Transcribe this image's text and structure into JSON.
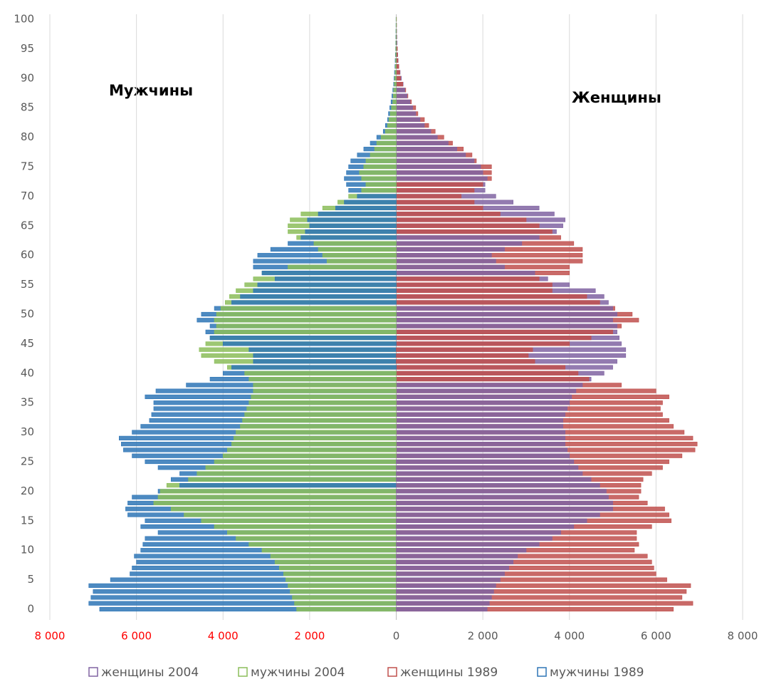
{
  "chart_data": {
    "type": "bar",
    "orientation": "horizontal",
    "annotations": [
      "Мужчины",
      "Женщины"
    ],
    "categories": [
      0,
      null,
      null,
      null,
      null,
      5,
      null,
      null,
      null,
      null,
      10,
      null,
      null,
      null,
      null,
      15,
      null,
      null,
      null,
      null,
      20,
      null,
      null,
      null,
      null,
      25,
      null,
      null,
      null,
      null,
      30,
      null,
      null,
      null,
      null,
      35,
      null,
      null,
      null,
      null,
      40,
      null,
      null,
      null,
      null,
      45,
      null,
      null,
      null,
      null,
      50,
      null,
      null,
      null,
      null,
      55,
      null,
      null,
      null,
      null,
      60,
      null,
      null,
      null,
      null,
      65,
      null,
      null,
      null,
      null,
      70,
      null,
      null,
      null,
      null,
      75,
      null,
      null,
      null,
      null,
      80,
      null,
      null,
      null,
      null,
      85,
      null,
      null,
      null,
      null,
      90,
      null,
      null,
      null,
      null,
      95,
      null,
      null,
      null,
      null,
      100
    ],
    "series": [
      {
        "name": "женщины 2004",
        "color": "#8064a2",
        "values": [
          2100,
          2150,
          2200,
          2250,
          2300,
          2400,
          2500,
          2600,
          2700,
          2800,
          3000,
          3300,
          3600,
          3800,
          4100,
          4400,
          4700,
          5000,
          5000,
          4900,
          4850,
          4700,
          4500,
          4300,
          4200,
          4100,
          4000,
          3950,
          3900,
          3900,
          3900,
          3850,
          3850,
          3900,
          3950,
          4000,
          4050,
          4150,
          4300,
          4500,
          4800,
          5000,
          5100,
          5300,
          5300,
          5200,
          5150,
          5100,
          5100,
          5000,
          5100,
          5000,
          4900,
          4800,
          4600,
          4000,
          3500,
          3200,
          2500,
          2300,
          2200,
          2500,
          2900,
          3300,
          3700,
          3850,
          3900,
          3650,
          3300,
          2700,
          2300,
          2050,
          2050,
          2100,
          2000,
          1950,
          1800,
          1600,
          1400,
          1200,
          950,
          800,
          650,
          550,
          450,
          380,
          320,
          250,
          200,
          160,
          120,
          90,
          60,
          45,
          35,
          25,
          18,
          12,
          9,
          6,
          4
        ]
      },
      {
        "name": "мужчины 2004",
        "color": "#8cbd5a",
        "values": [
          -2300,
          -2350,
          -2400,
          -2450,
          -2500,
          -2550,
          -2600,
          -2700,
          -2800,
          -2900,
          -3100,
          -3400,
          -3700,
          -3900,
          -4200,
          -4500,
          -4900,
          -5200,
          -5600,
          -5500,
          -5450,
          -5300,
          -4800,
          -4600,
          -4400,
          -4200,
          -4000,
          -3900,
          -3800,
          -3750,
          -3700,
          -3600,
          -3550,
          -3500,
          -3450,
          -3400,
          -3350,
          -3300,
          -3300,
          -3400,
          -3500,
          -3900,
          -4200,
          -4500,
          -4550,
          -4400,
          -4300,
          -4200,
          -4150,
          -4200,
          -4150,
          -4050,
          -3950,
          -3850,
          -3700,
          -3500,
          -3300,
          -3100,
          -2500,
          -1600,
          -1700,
          -1800,
          -1900,
          -2300,
          -2500,
          -2500,
          -2450,
          -2200,
          -1700,
          -1350,
          -1100,
          -800,
          -700,
          -800,
          -850,
          -750,
          -700,
          -600,
          -500,
          -450,
          -350,
          -250,
          -200,
          -170,
          -140,
          -110,
          -80,
          -70,
          -60,
          -45,
          -35,
          -25,
          -20,
          -15,
          -12,
          -10,
          -8,
          -6,
          -5,
          -4,
          -3
        ]
      },
      {
        "name": "женщины 1989",
        "color": "#c0504d",
        "values": [
          6400,
          6850,
          6600,
          6700,
          6800,
          6250,
          6000,
          5950,
          5900,
          5800,
          5500,
          5600,
          5550,
          5550,
          5900,
          6350,
          6300,
          6200,
          5800,
          5600,
          5650,
          5650,
          5700,
          5900,
          6150,
          6300,
          6600,
          6900,
          6950,
          6850,
          6650,
          6400,
          6300,
          6150,
          6100,
          6150,
          6300,
          6000,
          5200,
          4450,
          4200,
          3900,
          3200,
          3050,
          3150,
          4000,
          4500,
          5000,
          5200,
          5600,
          5450,
          5050,
          4700,
          4400,
          3600,
          3600,
          3300,
          4000,
          4000,
          4300,
          4300,
          4300,
          4100,
          3800,
          3600,
          3300,
          3000,
          2400,
          2000,
          1800,
          1500,
          1800,
          2000,
          2200,
          2200,
          2200,
          1850,
          1750,
          1550,
          1300,
          1100,
          900,
          750,
          650,
          500,
          450,
          350,
          270,
          220,
          150,
          100,
          80,
          60,
          40,
          30,
          25,
          20,
          15,
          10,
          8,
          6
        ]
      },
      {
        "name": "мужчины 1989",
        "color": "#2e75b6",
        "values": [
          -6850,
          -7100,
          -7050,
          -7000,
          -7100,
          -6600,
          -6150,
          -6100,
          -6000,
          -6050,
          -5900,
          -5850,
          -5800,
          -5500,
          -5900,
          -5800,
          -6200,
          -6250,
          -6200,
          -6100,
          -5500,
          -5000,
          -5200,
          -5000,
          -5500,
          -5800,
          -6100,
          -6300,
          -6350,
          -6400,
          -6100,
          -5900,
          -5700,
          -5650,
          -5600,
          -5600,
          -5800,
          -5550,
          -4850,
          -4300,
          -4000,
          -3800,
          -3300,
          -3300,
          -3400,
          -4000,
          -4300,
          -4400,
          -4300,
          -4600,
          -4500,
          -4200,
          -3800,
          -3600,
          -3300,
          -3200,
          -2800,
          -3100,
          -3300,
          -3300,
          -3200,
          -2900,
          -2500,
          -2200,
          -2100,
          -2000,
          -2050,
          -1800,
          -1400,
          -1200,
          -900,
          -1100,
          -1150,
          -1200,
          -1150,
          -1100,
          -1050,
          -900,
          -750,
          -600,
          -450,
          -300,
          -250,
          -200,
          -180,
          -150,
          -120,
          -100,
          -80,
          -60,
          -50,
          -40,
          -30,
          -25,
          -20,
          -15,
          -12,
          -10,
          -8,
          -6,
          -5
        ]
      }
    ],
    "xlim": [
      -8000,
      8000
    ],
    "xticks": [
      {
        "value": -8000,
        "label": "8 000"
      },
      {
        "value": -6000,
        "label": "6 000"
      },
      {
        "value": -4000,
        "label": "4 000"
      },
      {
        "value": -2000,
        "label": "2 000"
      },
      0,
      {
        "value": 2000,
        "label": "2 000"
      },
      {
        "value": 4000,
        "label": "4 000"
      },
      {
        "value": 6000,
        "label": "6 000"
      },
      {
        "value": 8000,
        "label": "8 000"
      }
    ],
    "negative_tick_color": "#ff0000",
    "grid": true,
    "legend": "bottom"
  }
}
